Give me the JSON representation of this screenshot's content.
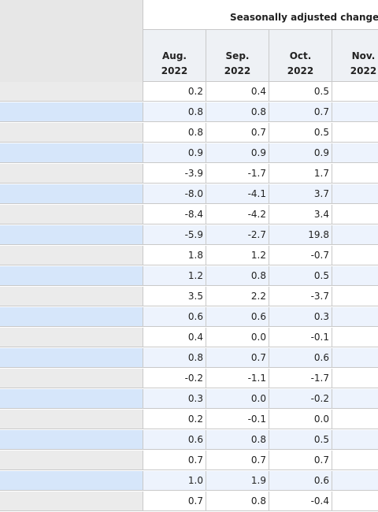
{
  "table": {
    "group_header": "Seasonally adjusted changes",
    "columns": [
      {
        "month": "Aug.",
        "year": "2022"
      },
      {
        "month": "Sep.",
        "year": "2022"
      },
      {
        "month": "Oct.",
        "year": "2022"
      },
      {
        "month": "Nov.",
        "year": "2022"
      }
    ],
    "rows": [
      [
        "0.2",
        "0.4",
        "0.5",
        ""
      ],
      [
        "0.8",
        "0.8",
        "0.7",
        ""
      ],
      [
        "0.8",
        "0.7",
        "0.5",
        ""
      ],
      [
        "0.9",
        "0.9",
        "0.9",
        ""
      ],
      [
        "-3.9",
        "-1.7",
        "1.7",
        "-"
      ],
      [
        "-8.0",
        "-4.1",
        "3.7",
        "-"
      ],
      [
        "-8.4",
        "-4.2",
        "3.4",
        "-"
      ],
      [
        "-5.9",
        "-2.7",
        "19.8",
        ""
      ],
      [
        "1.8",
        "1.2",
        "-0.7",
        "-"
      ],
      [
        "1.2",
        "0.8",
        "0.5",
        ""
      ],
      [
        "3.5",
        "2.2",
        "-3.7",
        "-"
      ],
      [
        "0.6",
        "0.6",
        "0.3",
        ""
      ],
      [
        "0.4",
        "0.0",
        "-0.1",
        "-"
      ],
      [
        "0.8",
        "0.7",
        "0.6",
        ""
      ],
      [
        "-0.2",
        "-1.1",
        "-1.7",
        "-"
      ],
      [
        "0.3",
        "0.0",
        "-0.2",
        ""
      ],
      [
        "0.2",
        "-0.1",
        "0.0",
        ""
      ],
      [
        "0.6",
        "0.8",
        "0.5",
        ""
      ],
      [
        "0.7",
        "0.7",
        "0.7",
        ""
      ],
      [
        "1.0",
        "1.9",
        "0.6",
        ""
      ],
      [
        "0.7",
        "0.8",
        "-0.4",
        "-"
      ]
    ]
  }
}
